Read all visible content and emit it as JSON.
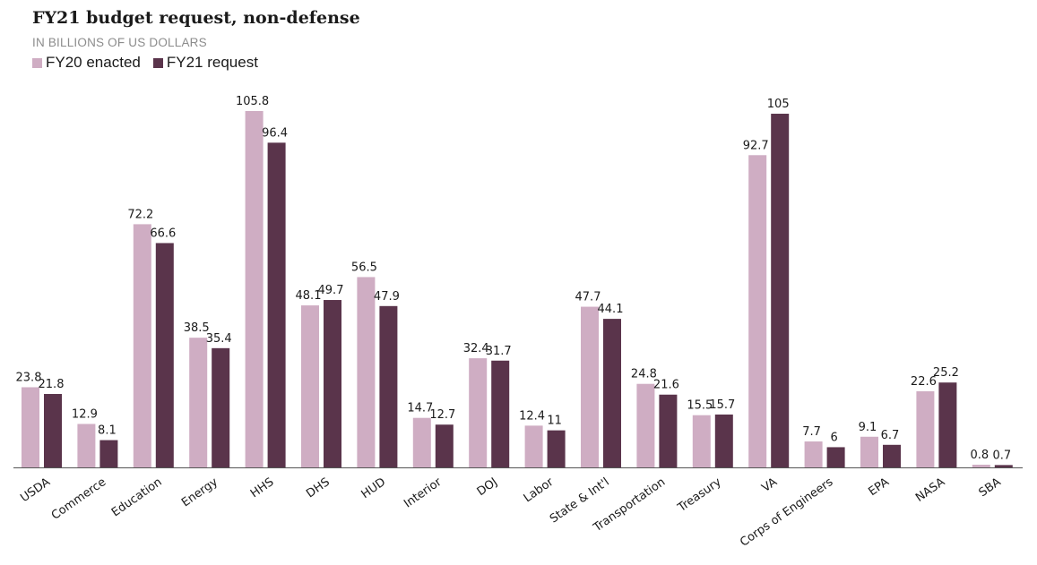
{
  "chart_data": {
    "type": "bar",
    "title": "FY21 budget request, non-defense",
    "subtitle": "IN BILLIONS OF US DOLLARS",
    "categories": [
      "USDA",
      "Commerce",
      "Education",
      "Energy",
      "HHS",
      "DHS",
      "HUD",
      "Interior",
      "DOJ",
      "Labor",
      "State & Int'l",
      "Transportation",
      "Treasury",
      "VA",
      "Corps of Engineers",
      "EPA",
      "NASA",
      "SBA"
    ],
    "series": [
      {
        "name": "FY20 enacted",
        "color": "#cfadc3",
        "values": [
          23.8,
          12.9,
          72.2,
          38.5,
          105.8,
          48.1,
          56.5,
          14.7,
          32.4,
          12.4,
          47.7,
          24.8,
          15.5,
          92.7,
          7.7,
          9.1,
          22.6,
          0.8
        ]
      },
      {
        "name": "FY21 request",
        "color": "#5a344b",
        "values": [
          21.8,
          8.1,
          66.6,
          35.4,
          96.4,
          49.7,
          47.9,
          12.7,
          31.7,
          11,
          44.1,
          21.6,
          15.7,
          105,
          6,
          6.7,
          25.2,
          0.7
        ]
      }
    ],
    "ylim": [
      0,
      105.8
    ],
    "grid": false,
    "legend_position": "top-left"
  }
}
